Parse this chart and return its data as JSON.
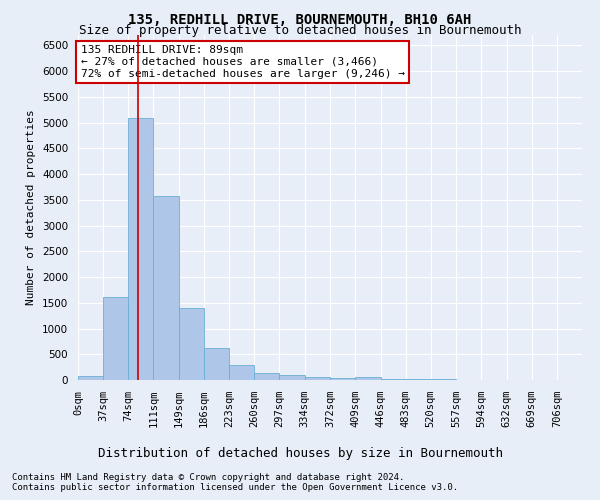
{
  "title": "135, REDHILL DRIVE, BOURNEMOUTH, BH10 6AH",
  "subtitle": "Size of property relative to detached houses in Bournemouth",
  "xlabel": "Distribution of detached houses by size in Bournemouth",
  "ylabel": "Number of detached properties",
  "bar_color": "#aec6e8",
  "bar_edgecolor": "#6baed6",
  "property_line_x": 89,
  "property_line_color": "#cc0000",
  "annotation_text": "135 REDHILL DRIVE: 89sqm\n← 27% of detached houses are smaller (3,466)\n72% of semi-detached houses are larger (9,246) →",
  "annotation_box_facecolor": "#ffffff",
  "annotation_box_edgecolor": "#cc0000",
  "footnote1": "Contains HM Land Registry data © Crown copyright and database right 2024.",
  "footnote2": "Contains public sector information licensed under the Open Government Licence v3.0.",
  "bin_edges": [
    0,
    37,
    74,
    111,
    149,
    186,
    223,
    260,
    297,
    334,
    372,
    409,
    446,
    483,
    520,
    557,
    594,
    632,
    669,
    706,
    743
  ],
  "bar_heights": [
    75,
    1620,
    5080,
    3570,
    1400,
    620,
    300,
    140,
    90,
    55,
    40,
    55,
    20,
    15,
    10,
    8,
    5,
    5,
    5,
    5
  ],
  "ylim": [
    0,
    6700
  ],
  "yticks": [
    0,
    500,
    1000,
    1500,
    2000,
    2500,
    3000,
    3500,
    4000,
    4500,
    5000,
    5500,
    6000,
    6500
  ],
  "background_color": "#e8eef8",
  "grid_color": "#ffffff",
  "title_fontsize": 10,
  "subtitle_fontsize": 9,
  "ylabel_fontsize": 8,
  "xlabel_fontsize": 9,
  "tick_fontsize": 7.5,
  "annotation_fontsize": 8,
  "footnote_fontsize": 6.5
}
